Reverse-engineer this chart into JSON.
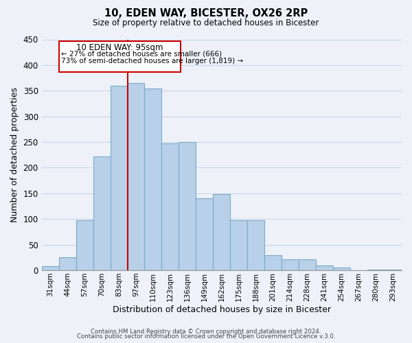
{
  "title": "10, EDEN WAY, BICESTER, OX26 2RP",
  "subtitle": "Size of property relative to detached houses in Bicester",
  "xlabel": "Distribution of detached houses by size in Bicester",
  "ylabel": "Number of detached properties",
  "bar_labels": [
    "31sqm",
    "44sqm",
    "57sqm",
    "70sqm",
    "83sqm",
    "97sqm",
    "110sqm",
    "123sqm",
    "136sqm",
    "149sqm",
    "162sqm",
    "175sqm",
    "188sqm",
    "201sqm",
    "214sqm",
    "228sqm",
    "241sqm",
    "254sqm",
    "267sqm",
    "280sqm",
    "293sqm"
  ],
  "bar_values": [
    8,
    25,
    98,
    222,
    360,
    365,
    355,
    248,
    250,
    140,
    148,
    97,
    97,
    30,
    22,
    22,
    10,
    5,
    0,
    2,
    2
  ],
  "bar_color": "#b8d0e8",
  "bar_edge_color": "#7aaac8",
  "marker_label": "10 EDEN WAY: 95sqm",
  "annotation_line1": "← 27% of detached houses are smaller (666)",
  "annotation_line2": "73% of semi-detached houses are larger (1,819) →",
  "marker_color": "#cc0000",
  "box_color": "#cc0000",
  "ylim": [
    0,
    450
  ],
  "yticks": [
    0,
    50,
    100,
    150,
    200,
    250,
    300,
    350,
    400,
    450
  ],
  "footer_line1": "Contains HM Land Registry data © Crown copyright and database right 2024.",
  "footer_line2": "Contains public sector information licensed under the Open Government Licence v.3.0.",
  "bg_color": "#eef2f8",
  "grid_color": "#c8d4e8"
}
